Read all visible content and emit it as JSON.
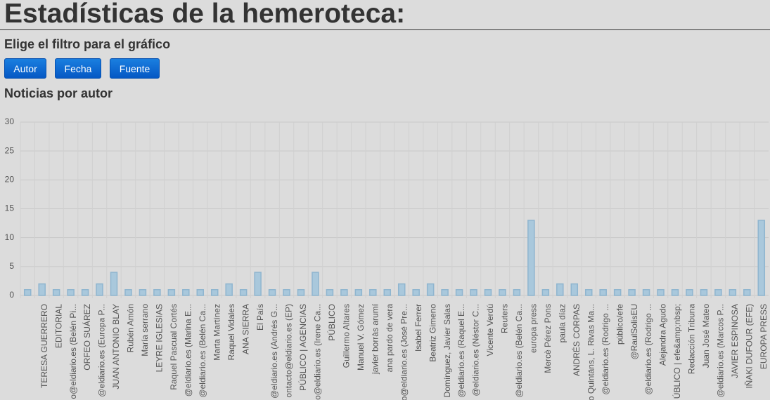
{
  "header": {
    "title": "Estadísticas de la hemeroteca:"
  },
  "filter": {
    "heading": "Elige el filtro para el gráfico",
    "buttons": [
      "Autor",
      "Fecha",
      "Fuente"
    ]
  },
  "chart_data": {
    "type": "bar",
    "title": "Noticias por autor",
    "categories": [
      null,
      "TERESA GUERRERO",
      "EDITORIAL",
      "o@eldiario.es (Belén Pi...",
      "ORFEO SUÁREZ",
      "@eldiario.es (Europa P...",
      "JUAN ANTONIO BLAY",
      "Rubén Amón",
      "María serrano",
      "LEYRE IGLESIAS",
      "Raquel Pascual Cortés",
      "@eldiario.es (Marina E...",
      "@eldiario.es (Belén Ca...",
      "Marta Martínez",
      "Raquel Vidales",
      "ANA SIERRA",
      "El País",
      "@eldiario.es (Andrés G...",
      "ontacto@eldiario.es (EP)",
      "PÚBLICO | AGENCIAS",
      "o@eldiario.es (Irene Ca...",
      "PÚBLICO",
      "Guillermo Altares",
      "Manuel V. Gómez",
      "javier borràs arumí",
      "ana pardo de vera",
      "o@eldiario.es (José Pre...",
      "Isabel Ferrer",
      "Beatriz Gimeno",
      "Domínguez, Javier Salas",
      "@eldiario.es (Raquel E...",
      "@eldiario.es (Néstor C...",
      "Vicente Verdú",
      "Reuters",
      "@eldiario.es (Belén Ca...",
      "europa press",
      "Mercè Pérez Pons",
      "paula díaz",
      "ANDRÉS CORPAS",
      "o Quintáns, L. Rivas Ma...",
      "@eldiario.es (Rodrigo ...",
      "público/efe",
      "@RaulSolisEU",
      "@eldiario.es (Rodrigo ...",
      "Alejandra Agudo",
      "ÚBLICO | efe&amp;nbsp;",
      "Redacción Tribuna",
      "Juan José Mateo",
      "@eldiario.es (Marcos P...",
      "JAVIER ESPINOSA",
      "IÑAKI DUFOUR (EFE)",
      "EUROPA PRESS"
    ],
    "values": [
      1,
      2,
      1,
      1,
      1,
      2,
      4,
      1,
      1,
      1,
      1,
      1,
      1,
      1,
      2,
      1,
      4,
      1,
      1,
      1,
      4,
      1,
      1,
      1,
      1,
      1,
      2,
      1,
      2,
      1,
      1,
      1,
      1,
      1,
      1,
      13,
      1,
      2,
      2,
      1,
      1,
      1,
      1,
      1,
      1,
      1,
      1,
      1,
      1,
      1,
      1,
      13
    ],
    "color": "#a9c8dc",
    "ylim": [
      0,
      30
    ],
    "yticks": [
      0,
      5,
      10,
      15,
      20,
      25,
      30
    ],
    "grid": true
  }
}
